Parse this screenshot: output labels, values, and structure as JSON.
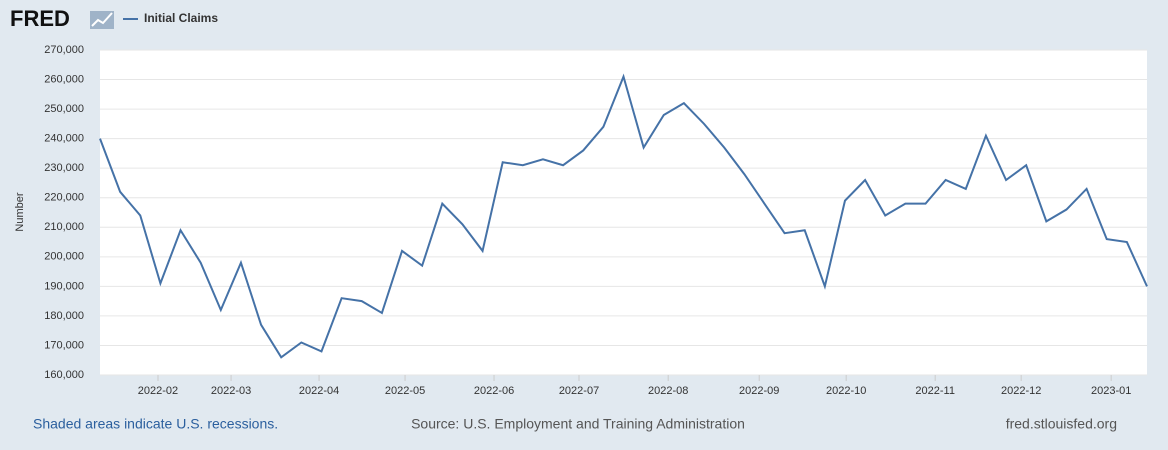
{
  "header": {
    "logo": "FRED"
  },
  "chart_data": {
    "type": "line",
    "y_axis_label": "Number",
    "categories": [
      null,
      null,
      null,
      null,
      null,
      null,
      null,
      null,
      null,
      null,
      null,
      null,
      null,
      null,
      null,
      null,
      null,
      null,
      null,
      null,
      null,
      null,
      null,
      null,
      null,
      null,
      null,
      null,
      null,
      null,
      null,
      null,
      null,
      null,
      null,
      null,
      null,
      null,
      null,
      null,
      null,
      null,
      null,
      null,
      null,
      null,
      null,
      null,
      null,
      null,
      null,
      null,
      null
    ],
    "series": [
      {
        "name": "Initial Claims",
        "color": "#4572a7",
        "values": [
          240000,
          222000,
          214000,
          191000,
          209000,
          198000,
          182000,
          198000,
          177000,
          166000,
          171000,
          168000,
          186000,
          185000,
          181000,
          202000,
          197000,
          218000,
          211000,
          202000,
          232000,
          231000,
          233000,
          231000,
          236000,
          244000,
          261000,
          237000,
          248000,
          252000,
          245000,
          237000,
          228000,
          218000,
          208000,
          209000,
          190000,
          219000,
          226000,
          214000,
          218000,
          218000,
          226000,
          223000,
          241000,
          226000,
          231000,
          212000,
          216000,
          223000,
          206000,
          205000,
          190000
        ]
      }
    ],
    "xticks": [
      {
        "value": 2.88,
        "label": "2022-02"
      },
      {
        "value": 6.51,
        "label": "2022-03"
      },
      {
        "value": 10.88,
        "label": "2022-04"
      },
      {
        "value": 15.15,
        "label": "2022-05"
      },
      {
        "value": 19.57,
        "label": "2022-06"
      },
      {
        "value": 23.79,
        "label": "2022-07"
      },
      {
        "value": 28.22,
        "label": "2022-08"
      },
      {
        "value": 32.74,
        "label": "2022-09"
      },
      {
        "value": 37.06,
        "label": "2022-10"
      },
      {
        "value": 41.48,
        "label": "2022-11"
      },
      {
        "value": 45.75,
        "label": "2022-12"
      },
      {
        "value": 50.22,
        "label": "2023-01"
      }
    ],
    "ylim": [
      160000,
      270000
    ],
    "yticks": [
      {
        "value": 160000,
        "label": "160,000"
      },
      {
        "value": 170000,
        "label": "170,000"
      },
      {
        "value": 180000,
        "label": "180,000"
      },
      {
        "value": 190000,
        "label": "190,000"
      },
      {
        "value": 200000,
        "label": "200,000"
      },
      {
        "value": 210000,
        "label": "210,000"
      },
      {
        "value": 220000,
        "label": "220,000"
      },
      {
        "value": 230000,
        "label": "230,000"
      },
      {
        "value": 240000,
        "label": "240,000"
      },
      {
        "value": 250000,
        "label": "250,000"
      },
      {
        "value": 260000,
        "label": "260,000"
      },
      {
        "value": 270000,
        "label": "270,000"
      }
    ],
    "grid": true
  },
  "footer": {
    "recessions": "Shaded areas indicate U.S. recessions.",
    "source": "Source: U.S. Employment and Training Administration",
    "site": "fred.stlouisfed.org"
  }
}
